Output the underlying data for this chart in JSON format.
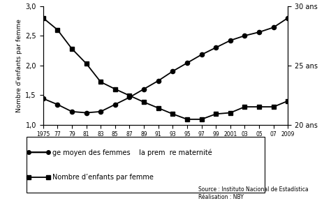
{
  "age_years": [
    1975,
    1977,
    1979,
    1981,
    1983,
    1985,
    1987,
    1989,
    1991,
    1993,
    1995,
    1997,
    1999,
    2001,
    2003,
    2005,
    2007,
    2009
  ],
  "age_vals": [
    22.2,
    21.7,
    21.1,
    21.0,
    21.1,
    21.7,
    22.3,
    23.0,
    23.7,
    24.5,
    25.2,
    25.9,
    26.5,
    27.1,
    27.5,
    27.8,
    28.2,
    29.0
  ],
  "nb_years": [
    1975,
    1977,
    1979,
    1981,
    1983,
    1985,
    1987,
    1989,
    1991,
    1993,
    1995,
    1997,
    1999,
    2001,
    2003,
    2005,
    2007,
    2009
  ],
  "nb_vals": [
    2.8,
    2.6,
    2.28,
    2.03,
    1.72,
    1.6,
    1.49,
    1.38,
    1.28,
    1.18,
    1.09,
    1.09,
    1.18,
    1.2,
    1.3,
    1.3,
    1.3,
    1.4
  ],
  "ylabel_left": "Nombre d'enfants par femme",
  "xlim": [
    1975,
    2009
  ],
  "ylim_left": [
    1.0,
    3.0
  ],
  "ylim_right": [
    20,
    30
  ],
  "xtick_positions": [
    1975,
    1977,
    1979,
    1981,
    1983,
    1985,
    1987,
    1989,
    1991,
    1993,
    1995,
    1997,
    1999,
    2001,
    2003,
    2005,
    2007,
    2009
  ],
  "xtick_labels": [
    "1975",
    "77",
    "79",
    "81",
    "83",
    "85",
    "87",
    "89",
    "91",
    "93",
    "95",
    "97",
    "99",
    "2001",
    "03",
    "05",
    "07",
    "2009"
  ],
  "yticks_left": [
    1.0,
    1.5,
    2.0,
    2.5,
    3.0
  ],
  "ytick_labels_left": [
    "1,0",
    "1,5",
    "2,0",
    "2,5",
    "3,0"
  ],
  "yticks_right": [
    20,
    25,
    30
  ],
  "ytick_labels_right": [
    "20 ans",
    "25 ans",
    "30 ans"
  ],
  "legend_line1": "ge moyen des femmes    la prem  re maternité",
  "legend_line2": "Nombre d’enfants par femme",
  "source_text": "Source : Instituto Nacional de Estadística\nRéalisation : NBY",
  "background_color": "#ffffff"
}
